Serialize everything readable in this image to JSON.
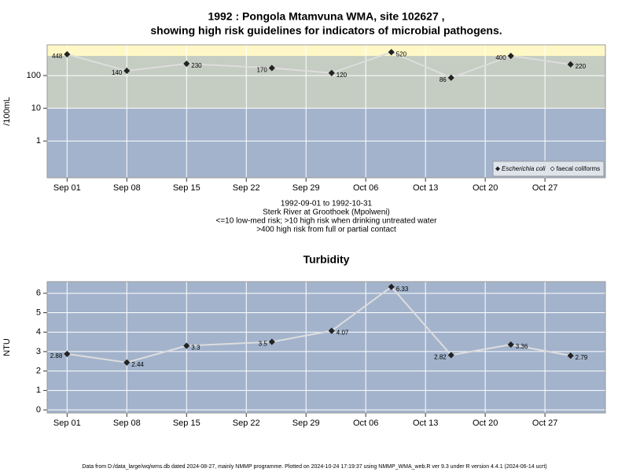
{
  "chart_data": [
    {
      "type": "line",
      "title": [
        "1992 : Pongola Mtamvuna WMA, site 102627 ,",
        "showing high risk guidelines for indicators of microbial pathogens."
      ],
      "y_label": "/100mL",
      "notes": [
        "1992-09-01 to 1992-10-31",
        "Sterk River at Groothoek (Mpolweni)",
        "<=10 low-med risk; >10 high risk when drinking untreated water",
        ">400 high risk from full or partial contact"
      ],
      "x": [
        "1992-09-01",
        "1992-09-08",
        "1992-09-15",
        "1992-09-25",
        "1992-10-02",
        "1992-10-09",
        "1992-10-16",
        "1992-10-23",
        "1992-10-30"
      ],
      "series": [
        {
          "name": "Escherichia coli",
          "color": "#222222",
          "line_color": "#dddddd",
          "values": [
            448,
            140,
            230,
            170,
            120,
            520,
            86,
            400,
            220
          ]
        },
        {
          "name": "faecal coliforms",
          "color": "#ffffff",
          "line_color": "#dddddd",
          "values": [
            null,
            null,
            null,
            null,
            null,
            null,
            null,
            null,
            null
          ]
        }
      ],
      "log_scale": true,
      "ylim": [
        0.075,
        870
      ],
      "yticks": [
        1,
        10,
        100
      ],
      "xlim": [
        "1992-08-29T16:00",
        "1992-11-03T02:00"
      ],
      "xticks": [
        {
          "value": "1992-09-01",
          "label": "Sep 01"
        },
        {
          "value": "1992-09-08",
          "label": "Sep 08"
        },
        {
          "value": "1992-09-15",
          "label": "Sep 15"
        },
        {
          "value": "1992-09-22",
          "label": "Sep 22"
        },
        {
          "value": "1992-09-29",
          "label": "Sep 29"
        },
        {
          "value": "1992-10-06",
          "label": "Oct 06"
        },
        {
          "value": "1992-10-13",
          "label": "Oct 13"
        },
        {
          "value": "1992-10-20",
          "label": "Oct 20"
        },
        {
          "value": "1992-10-27",
          "label": "Oct 27"
        }
      ],
      "band_limits": [
        10,
        400
      ],
      "band_colors": [
        "#a3b3cc",
        "#c5ccc2",
        "#fff8c6"
      ],
      "grid": true,
      "legend": "bottom-right"
    },
    {
      "type": "line",
      "title": [
        "Turbidity"
      ],
      "y_label": "NTU",
      "x": [
        "1992-09-01",
        "1992-09-08",
        "1992-09-15",
        "1992-09-25",
        "1992-10-02",
        "1992-10-09",
        "1992-10-16",
        "1992-10-23",
        "1992-10-30"
      ],
      "series": [
        {
          "name": "Turbidity",
          "color": "#222222",
          "line_color": "#dddddd",
          "values": [
            2.88,
            2.44,
            3.3,
            3.5,
            4.07,
            6.33,
            2.82,
            3.36,
            2.79
          ]
        }
      ],
      "log_scale": false,
      "ylim": [
        -0.16,
        6.6
      ],
      "yticks": [
        0,
        1,
        2,
        3,
        4,
        5,
        6
      ],
      "xlim": [
        "1992-08-29T16:00",
        "1992-11-03T02:00"
      ],
      "xticks": [
        {
          "value": "1992-09-01",
          "label": "Sep 01"
        },
        {
          "value": "1992-09-08",
          "label": "Sep 08"
        },
        {
          "value": "1992-09-15",
          "label": "Sep 15"
        },
        {
          "value": "1992-09-22",
          "label": "Sep 22"
        },
        {
          "value": "1992-09-29",
          "label": "Sep 29"
        },
        {
          "value": "1992-10-06",
          "label": "Oct 06"
        },
        {
          "value": "1992-10-13",
          "label": "Oct 13"
        },
        {
          "value": "1992-10-20",
          "label": "Oct 20"
        },
        {
          "value": "1992-10-27",
          "label": "Oct 27"
        }
      ],
      "band_colors": [
        "#a3b3cc"
      ],
      "grid": true
    }
  ],
  "footnote": "Data from D:/data_large/wq/wms.db dated 2024-08-27, mainly NMMP programme. Plotted on 2024-10-24 17:19:37 using NMMP_WMA_web.R ver 9.3 under R version 4.4.1 (2024-06-14 ucrt)"
}
